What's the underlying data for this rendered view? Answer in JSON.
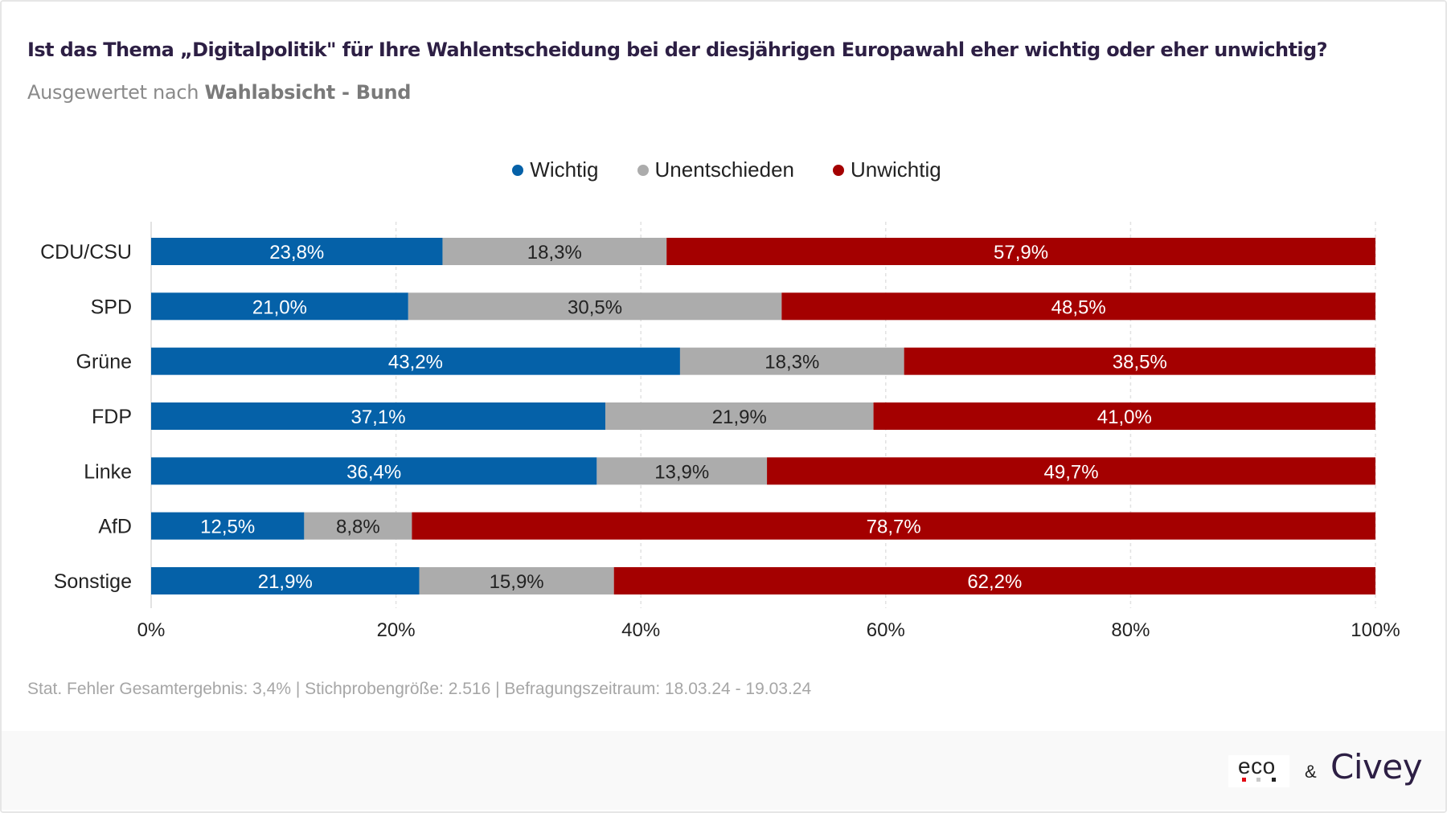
{
  "header": {
    "title": "Ist das Thema „Digitalpolitik\" für Ihre Wahlentscheidung bei der diesjährigen Europawahl eher wichtig oder eher unwichtig?",
    "subtitle_prefix": "Ausgewertet nach ",
    "subtitle_bold": "Wahlabsicht - Bund"
  },
  "chart_data": {
    "type": "bar",
    "orientation": "horizontal",
    "stacked": true,
    "categories": [
      "CDU/CSU",
      "SPD",
      "Grüne",
      "FDP",
      "Linke",
      "AfD",
      "Sonstige"
    ],
    "series": [
      {
        "name": "Wichtig",
        "color": "#0561a8",
        "values": [
          23.8,
          21.0,
          43.2,
          37.1,
          36.4,
          12.5,
          21.9
        ],
        "labels": [
          "23,8%",
          "21,0%",
          "43,2%",
          "37,1%",
          "36,4%",
          "12,5%",
          "21,9%"
        ],
        "label_color": "#ffffff"
      },
      {
        "name": "Unentschieden",
        "color": "#acacac",
        "values": [
          18.3,
          30.5,
          18.3,
          21.9,
          13.9,
          8.8,
          15.9
        ],
        "labels": [
          "18,3%",
          "30,5%",
          "18,3%",
          "21,9%",
          "13,9%",
          "8,8%",
          "15,9%"
        ],
        "label_color": "#222222"
      },
      {
        "name": "Unwichtig",
        "color": "#a40000",
        "values": [
          57.9,
          48.5,
          38.5,
          41.0,
          49.7,
          78.7,
          62.2
        ],
        "labels": [
          "57,9%",
          "48,5%",
          "38,5%",
          "41,0%",
          "49,7%",
          "78,7%",
          "62,2%"
        ],
        "label_color": "#ffffff"
      }
    ],
    "xlim": [
      0,
      100
    ],
    "xticks": [
      0,
      20,
      40,
      60,
      80,
      100
    ],
    "xtick_labels": [
      "0%",
      "20%",
      "40%",
      "60%",
      "80%",
      "100%"
    ],
    "grid": "vertical dashed",
    "legend": "top-center",
    "title": "Ist das Thema „Digitalpolitik\" für Ihre Wahlentscheidung bei der diesjährigen Europawahl eher wichtig oder eher unwichtig?",
    "subtitle": "Ausgewertet nach Wahlabsicht - Bund",
    "xlabel": "",
    "ylabel": ""
  },
  "footnote": "Stat. Fehler Gesamtergebnis: 3,4% | Stichprobengröße: 2.516 | Befragungszeitraum: 18.03.24 - 19.03.24",
  "branding": {
    "eco": "eco",
    "amp": "&",
    "civey": "Civey",
    "eco_dots": [
      "#e30613",
      "#c8c8c8",
      "#222222"
    ]
  }
}
